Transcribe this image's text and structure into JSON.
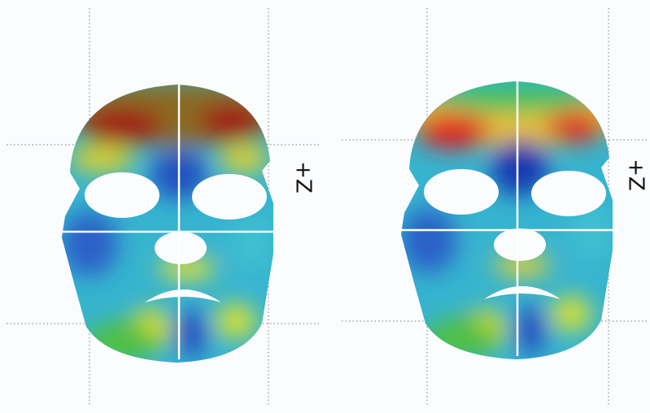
{
  "panels": [
    {
      "axis_label": "+Z"
    },
    {
      "axis_label": "+Z"
    }
  ]
}
